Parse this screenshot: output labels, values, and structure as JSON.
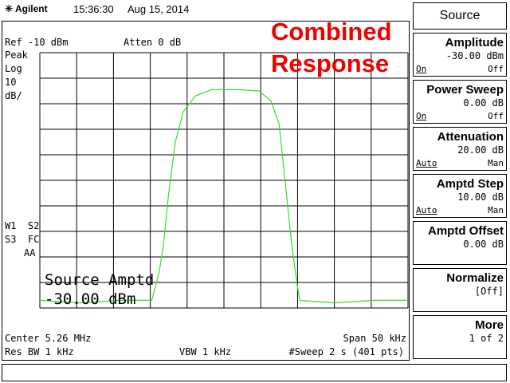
{
  "header": {
    "brand": "Agilent",
    "time": "15:36:30",
    "date": "Aug 15, 2014"
  },
  "screen": {
    "ref": "Ref -10 dBm",
    "atten": "Atten 0 dB",
    "detector": [
      "Peak",
      "Log",
      "10",
      "dB/"
    ],
    "flags": [
      "W1  S2",
      "S3  FC",
      "AA"
    ],
    "overlay": [
      "Combined",
      "Response"
    ],
    "source_label": [
      "Source Amptd",
      "-30.00 dBm"
    ],
    "center": "Center 5.26 MHz",
    "span": "Span 50 kHz",
    "rbw": "Res BW 1 kHz",
    "vbw": "VBW 1 kHz",
    "sweep": "#Sweep 2 s (401 pts)",
    "trace": {
      "color": "#33dd33",
      "xlim": [
        5.235,
        5.285
      ],
      "ylim": [
        -110,
        -10
      ],
      "x": [
        5.235,
        5.2404,
        5.2458,
        5.2502,
        5.2512,
        5.2518,
        5.2525,
        5.2534,
        5.2545,
        5.2561,
        5.2583,
        5.2621,
        5.2648,
        5.2664,
        5.2675,
        5.2683,
        5.2692,
        5.2699,
        5.2703,
        5.275,
        5.2804,
        5.285
      ],
      "values": [
        -107,
        -108,
        -107,
        -107,
        -96,
        -85,
        -65,
        -45,
        -33,
        -27,
        -24.5,
        -24.5,
        -25,
        -29,
        -38,
        -60,
        -85,
        -100,
        -107,
        -108,
        -107,
        -107
      ]
    }
  },
  "menu": {
    "title": "Source",
    "keys": [
      {
        "label": "Amplitude",
        "value": "-30.00 dBm",
        "left": "On",
        "right": "Off"
      },
      {
        "label": "Power Sweep",
        "value": "0.00 dB",
        "left": "On",
        "right": "Off"
      },
      {
        "label": "Attenuation",
        "value": "20.00 dB",
        "left": "Auto",
        "right": "Man"
      },
      {
        "label": "Amptd Step",
        "value": "10.00 dB",
        "left": "Auto",
        "right": "Man"
      },
      {
        "label": "Amptd Offset",
        "value": "0.00 dB"
      },
      {
        "label": "Normalize",
        "value": "[Off]"
      },
      {
        "label": "More",
        "value": "1 of 2"
      }
    ]
  }
}
